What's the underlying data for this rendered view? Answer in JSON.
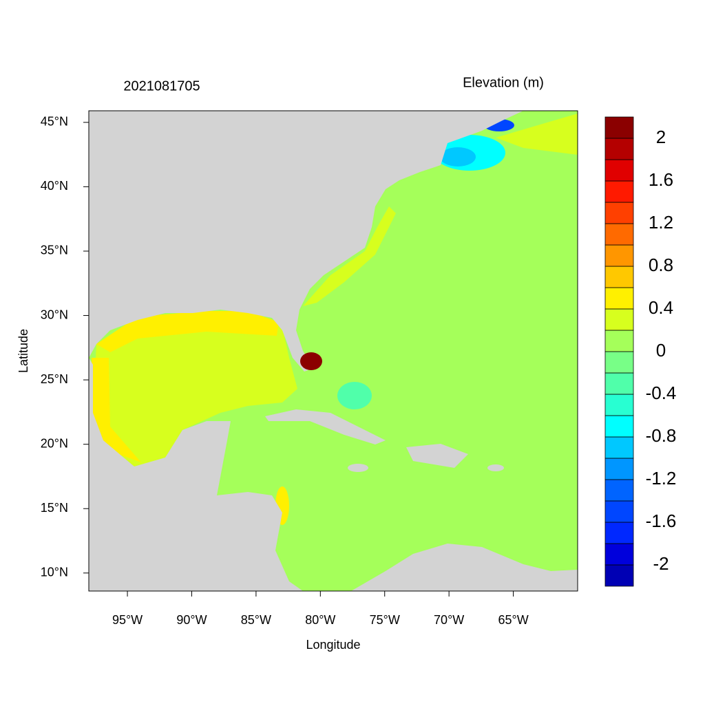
{
  "chart_data": {
    "type": "map",
    "title": "2021081705",
    "colorbar_title": "Elevation (m)",
    "x_label": "Longitude",
    "y_label": "Latitude",
    "xlim": [
      -98,
      -60
    ],
    "ylim": [
      8.6,
      45.9
    ],
    "xticks": [
      {
        "value": -95,
        "label": "95°W"
      },
      {
        "value": -90,
        "label": "90°W"
      },
      {
        "value": -85,
        "label": "85°W"
      },
      {
        "value": -80,
        "label": "80°W"
      },
      {
        "value": -75,
        "label": "75°W"
      },
      {
        "value": -70,
        "label": "70°W"
      },
      {
        "value": -65,
        "label": "65°W"
      }
    ],
    "yticks": [
      {
        "value": 10,
        "label": "10°N"
      },
      {
        "value": 15,
        "label": "15°N"
      },
      {
        "value": 20,
        "label": "20°N"
      },
      {
        "value": 25,
        "label": "25°N"
      },
      {
        "value": 30,
        "label": "30°N"
      },
      {
        "value": 35,
        "label": "35°N"
      },
      {
        "value": 40,
        "label": "40°N"
      },
      {
        "value": 45,
        "label": "45°N"
      }
    ],
    "colorbar": {
      "levels": [
        -2.2,
        -2,
        -1.8,
        -1.6,
        -1.4,
        -1.2,
        -1,
        -0.8,
        -0.6,
        -0.4,
        -0.2,
        0,
        0.2,
        0.4,
        0.6,
        0.8,
        1,
        1.2,
        1.4,
        1.6,
        1.8,
        2,
        2.2
      ],
      "colors": [
        "#0000b4",
        "#0000dc",
        "#0028ff",
        "#0046ff",
        "#0064ff",
        "#0096ff",
        "#00c8ff",
        "#00ffff",
        "#28ffd2",
        "#50ffaa",
        "#78ff87",
        "#a5ff5a",
        "#d7ff1e",
        "#fff000",
        "#ffc800",
        "#ff9600",
        "#ff6a00",
        "#ff4000",
        "#ff1a00",
        "#e00000",
        "#b40000",
        "#8b0000"
      ],
      "ticks": [
        -2,
        -1.6,
        -1.2,
        -0.8,
        -0.4,
        0,
        0.4,
        0.8,
        1.2,
        1.6,
        2
      ]
    }
  }
}
